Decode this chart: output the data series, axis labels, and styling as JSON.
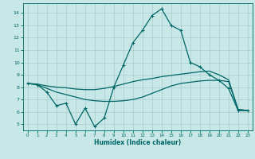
{
  "xlabel": "Humidex (Indice chaleur)",
  "bg_color": "#c8e8e8",
  "grid_color": "#aacccc",
  "line_color": "#006666",
  "xlim": [
    -0.5,
    23.5
  ],
  "ylim": [
    4.5,
    14.8
  ],
  "xticks": [
    0,
    1,
    2,
    3,
    4,
    5,
    6,
    7,
    8,
    9,
    10,
    11,
    12,
    13,
    14,
    15,
    16,
    17,
    18,
    19,
    20,
    21,
    22,
    23
  ],
  "yticks": [
    5,
    6,
    7,
    8,
    9,
    10,
    11,
    12,
    13,
    14
  ],
  "line1_x": [
    0,
    1,
    2,
    3,
    4,
    5,
    6,
    7,
    8,
    9,
    10,
    11,
    12,
    13,
    14,
    15,
    16,
    17,
    18,
    19,
    20,
    21,
    22,
    23
  ],
  "line1_y": [
    8.3,
    8.2,
    7.6,
    6.5,
    6.7,
    5.0,
    6.3,
    4.8,
    5.5,
    8.0,
    9.8,
    11.6,
    12.6,
    13.8,
    14.35,
    13.0,
    12.6,
    10.0,
    9.65,
    9.0,
    8.55,
    7.9,
    6.1,
    6.1
  ],
  "line2_x": [
    0,
    1,
    2,
    3,
    4,
    5,
    6,
    7,
    8,
    9,
    10,
    11,
    12,
    13,
    14,
    15,
    16,
    17,
    18,
    19,
    20,
    21,
    22,
    23
  ],
  "line2_y": [
    8.3,
    8.25,
    8.1,
    8.0,
    7.95,
    7.85,
    7.8,
    7.8,
    7.9,
    8.05,
    8.25,
    8.45,
    8.6,
    8.7,
    8.85,
    8.95,
    9.05,
    9.15,
    9.25,
    9.3,
    9.0,
    8.6,
    6.2,
    6.1
  ],
  "line3_x": [
    0,
    1,
    2,
    3,
    4,
    5,
    6,
    7,
    8,
    9,
    10,
    11,
    12,
    13,
    14,
    15,
    16,
    17,
    18,
    19,
    20,
    21,
    22,
    23
  ],
  "line3_y": [
    8.3,
    8.2,
    7.9,
    7.6,
    7.4,
    7.2,
    7.0,
    6.9,
    6.85,
    6.85,
    6.9,
    7.0,
    7.2,
    7.5,
    7.8,
    8.1,
    8.3,
    8.4,
    8.5,
    8.55,
    8.55,
    8.45,
    6.2,
    6.1
  ]
}
